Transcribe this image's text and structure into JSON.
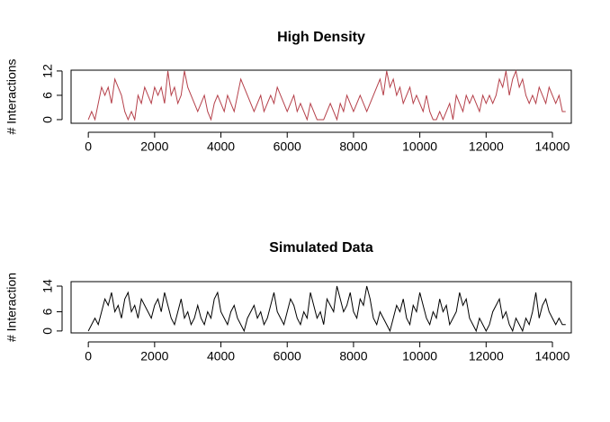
{
  "chart_data": [
    {
      "type": "line",
      "title": "High Density",
      "y_label": "# Interactions",
      "x": [
        0,
        100,
        200,
        300,
        400,
        500,
        600,
        700,
        800,
        900,
        1000,
        1100,
        1200,
        1300,
        1400,
        1500,
        1600,
        1700,
        1800,
        1900,
        2000,
        2100,
        2200,
        2300,
        2400,
        2500,
        2600,
        2700,
        2800,
        2900,
        3000,
        3100,
        3200,
        3300,
        3400,
        3500,
        3600,
        3700,
        3800,
        3900,
        4000,
        4100,
        4200,
        4300,
        4400,
        4500,
        4600,
        4700,
        4800,
        4900,
        5000,
        5100,
        5200,
        5300,
        5400,
        5500,
        5600,
        5700,
        5800,
        5900,
        6000,
        6100,
        6200,
        6300,
        6400,
        6500,
        6600,
        6700,
        6800,
        6900,
        7000,
        7100,
        7200,
        7300,
        7400,
        7500,
        7600,
        7700,
        7800,
        7900,
        8000,
        8100,
        8200,
        8300,
        8400,
        8500,
        8600,
        8700,
        8800,
        8900,
        9000,
        9100,
        9200,
        9300,
        9400,
        9500,
        9600,
        9700,
        9800,
        9900,
        10000,
        10100,
        10200,
        10300,
        10400,
        10500,
        10600,
        10700,
        10800,
        10900,
        11000,
        11100,
        11200,
        11300,
        11400,
        11500,
        11600,
        11700,
        11800,
        11900,
        12000,
        12100,
        12200,
        12300,
        12400,
        12500,
        12600,
        12700,
        12800,
        12900,
        13000,
        13100,
        13200,
        13300,
        13400,
        13500,
        13600,
        13700,
        13800,
        13900,
        14000,
        14100,
        14200,
        14300,
        14400
      ],
      "series": [
        {
          "color": "#b5404a",
          "values": [
            0,
            2,
            0,
            4,
            8,
            6,
            8,
            4,
            10,
            8,
            6,
            2,
            0,
            2,
            0,
            6,
            4,
            8,
            6,
            4,
            8,
            6,
            8,
            4,
            12,
            6,
            8,
            4,
            6,
            12,
            8,
            6,
            4,
            2,
            4,
            6,
            2,
            0,
            4,
            6,
            4,
            2,
            6,
            4,
            2,
            6,
            10,
            8,
            6,
            4,
            2,
            4,
            6,
            2,
            4,
            6,
            4,
            8,
            6,
            4,
            2,
            4,
            6,
            2,
            4,
            2,
            0,
            4,
            2,
            0,
            0,
            0,
            2,
            4,
            2,
            0,
            4,
            2,
            6,
            4,
            2,
            4,
            6,
            4,
            2,
            4,
            6,
            8,
            10,
            6,
            12,
            8,
            10,
            6,
            8,
            4,
            6,
            8,
            4,
            6,
            4,
            2,
            6,
            2,
            0,
            0,
            2,
            0,
            2,
            4,
            0,
            6,
            4,
            2,
            6,
            4,
            6,
            4,
            2,
            6,
            4,
            6,
            4,
            6,
            10,
            8,
            12,
            6,
            10,
            12,
            8,
            10,
            6,
            4,
            6,
            4,
            8,
            6,
            4,
            8,
            6,
            4,
            6,
            2,
            2
          ]
        }
      ],
      "xlim": [
        -520,
        14570
      ],
      "ylim": [
        -0.9,
        12.2
      ],
      "xticks": [
        0,
        2000,
        4000,
        6000,
        8000,
        10000,
        12000,
        14000
      ],
      "yticks": [
        0,
        6,
        12
      ]
    },
    {
      "type": "line",
      "title": "Simulated Data",
      "y_label": "# Interaction",
      "x": [
        0,
        100,
        200,
        300,
        400,
        500,
        600,
        700,
        800,
        900,
        1000,
        1100,
        1200,
        1300,
        1400,
        1500,
        1600,
        1700,
        1800,
        1900,
        2000,
        2100,
        2200,
        2300,
        2400,
        2500,
        2600,
        2700,
        2800,
        2900,
        3000,
        3100,
        3200,
        3300,
        3400,
        3500,
        3600,
        3700,
        3800,
        3900,
        4000,
        4100,
        4200,
        4300,
        4400,
        4500,
        4600,
        4700,
        4800,
        4900,
        5000,
        5100,
        5200,
        5300,
        5400,
        5500,
        5600,
        5700,
        5800,
        5900,
        6000,
        6100,
        6200,
        6300,
        6400,
        6500,
        6600,
        6700,
        6800,
        6900,
        7000,
        7100,
        7200,
        7300,
        7400,
        7500,
        7600,
        7700,
        7800,
        7900,
        8000,
        8100,
        8200,
        8300,
        8400,
        8500,
        8600,
        8700,
        8800,
        8900,
        9000,
        9100,
        9200,
        9300,
        9400,
        9500,
        9600,
        9700,
        9800,
        9900,
        10000,
        10100,
        10200,
        10300,
        10400,
        10500,
        10600,
        10700,
        10800,
        10900,
        11000,
        11100,
        11200,
        11300,
        11400,
        11500,
        11600,
        11700,
        11800,
        11900,
        12000,
        12100,
        12200,
        12300,
        12400,
        12500,
        12600,
        12700,
        12800,
        12900,
        13000,
        13100,
        13200,
        13300,
        13400,
        13500,
        13600,
        13700,
        13800,
        13900,
        14000,
        14100,
        14200,
        14300,
        14400
      ],
      "series": [
        {
          "color": "#000000",
          "values": [
            0,
            2,
            4,
            2,
            6,
            10,
            8,
            12,
            6,
            8,
            4,
            10,
            12,
            6,
            8,
            4,
            10,
            8,
            6,
            4,
            8,
            10,
            6,
            12,
            8,
            4,
            2,
            6,
            10,
            4,
            6,
            2,
            4,
            8,
            4,
            2,
            6,
            4,
            10,
            12,
            6,
            4,
            2,
            6,
            8,
            4,
            2,
            0,
            4,
            6,
            8,
            4,
            6,
            2,
            4,
            8,
            12,
            6,
            4,
            2,
            6,
            10,
            8,
            4,
            2,
            6,
            4,
            12,
            8,
            4,
            6,
            2,
            10,
            8,
            6,
            14,
            10,
            6,
            8,
            12,
            6,
            4,
            10,
            8,
            14,
            10,
            4,
            2,
            6,
            4,
            2,
            0,
            4,
            8,
            6,
            10,
            4,
            2,
            8,
            6,
            12,
            8,
            4,
            2,
            6,
            4,
            10,
            6,
            8,
            2,
            4,
            6,
            12,
            8,
            10,
            4,
            2,
            0,
            4,
            2,
            0,
            2,
            6,
            8,
            10,
            4,
            6,
            2,
            0,
            4,
            2,
            0,
            4,
            2,
            6,
            12,
            4,
            8,
            10,
            6,
            4,
            2,
            4,
            2,
            2
          ]
        }
      ],
      "xlim": [
        -520,
        14570
      ],
      "ylim": [
        -0.6,
        15.4
      ],
      "xticks": [
        0,
        2000,
        4000,
        6000,
        8000,
        10000,
        12000,
        14000
      ],
      "yticks": [
        0,
        6,
        14
      ]
    }
  ]
}
